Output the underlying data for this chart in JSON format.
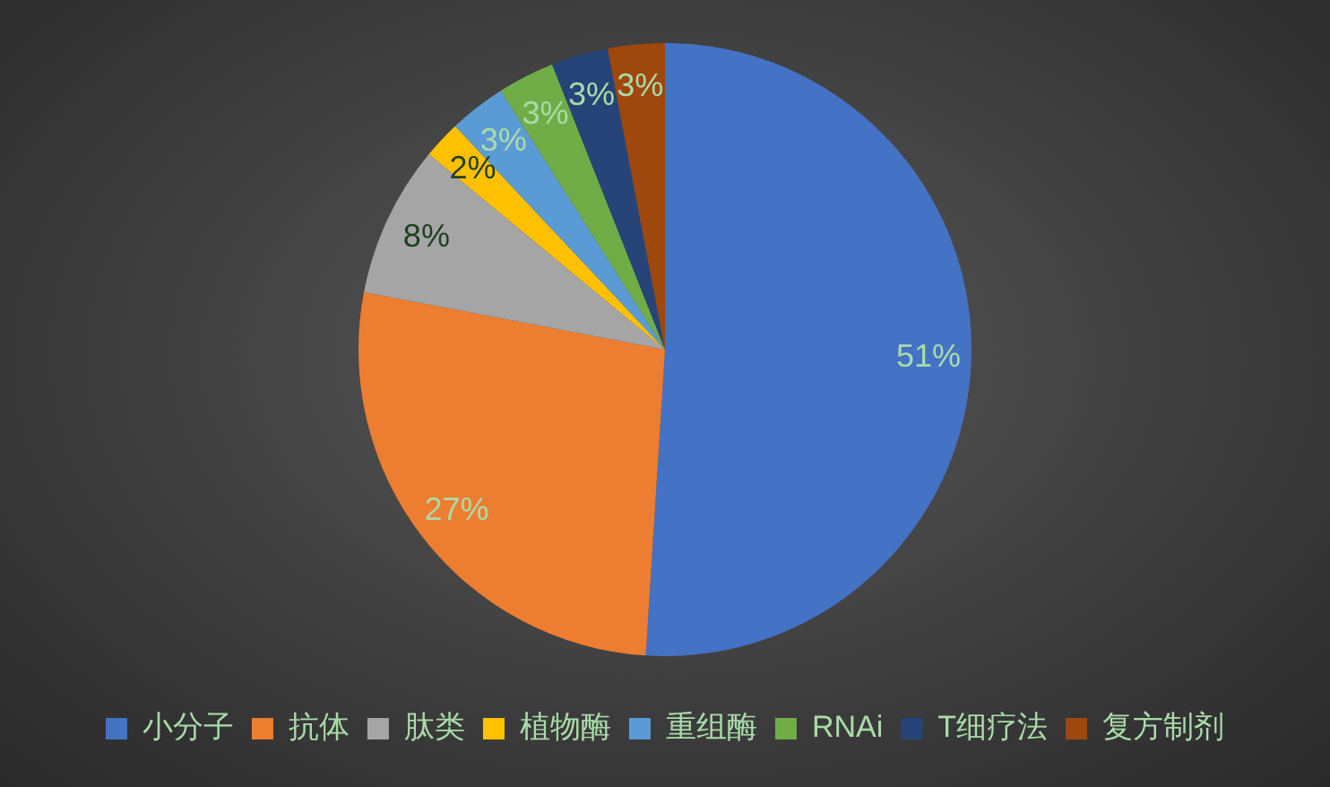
{
  "chart_data": {
    "type": "pie",
    "categories": [
      "小分子",
      "抗体",
      "肽类",
      "植物酶",
      "重组酶",
      "RNAi",
      "T细疗法",
      "复方制剂"
    ],
    "values": [
      51,
      27,
      8,
      2,
      3,
      3,
      3,
      3
    ],
    "colors": [
      "#4472c4",
      "#ed7d31",
      "#a5a5a5",
      "#ffc000",
      "#5b9bd5",
      "#70ad47",
      "#264478",
      "#9e480e"
    ],
    "value_labels": [
      "51%",
      "27%",
      "8%",
      "2%",
      "3%",
      "3%",
      "3%",
      "3%"
    ],
    "legend": "bottom"
  }
}
